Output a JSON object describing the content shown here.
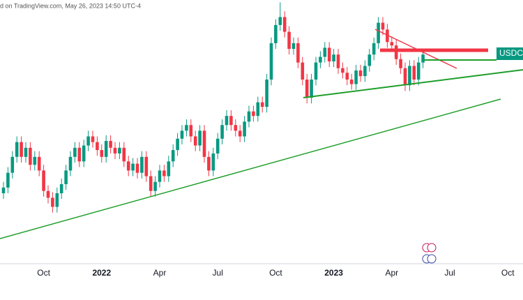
{
  "header": {
    "text": "d on TradingView.com, May 26, 2023 14:50 UTC-4"
  },
  "chart_data": {
    "type": "candlestick",
    "symbol_tag": "USDCAD",
    "up_color": "#089981",
    "down_color": "#f23645",
    "ylim": [
      1.168,
      1.4
    ],
    "categories": [
      null,
      null,
      null,
      null,
      null,
      null,
      null,
      null,
      null,
      "Oct",
      null,
      null,
      null,
      null,
      null,
      null,
      null,
      null,
      null,
      null,
      null,
      null,
      "2022",
      null,
      null,
      null,
      null,
      null,
      null,
      null,
      null,
      null,
      null,
      null,
      null,
      "Apr",
      null,
      null,
      null,
      null,
      null,
      null,
      null,
      null,
      null,
      null,
      null,
      null,
      "Jul",
      null,
      null,
      null,
      null,
      null,
      null,
      null,
      null,
      null,
      null,
      null,
      null,
      "Oct",
      null,
      null,
      null,
      null,
      null,
      null,
      null,
      null,
      null,
      null,
      null,
      null,
      "2023",
      null,
      null,
      null,
      null,
      null,
      null,
      null,
      null,
      null,
      null,
      null,
      null,
      "Apr",
      null,
      null,
      null,
      null,
      null,
      null,
      null,
      null,
      null,
      null,
      null,
      null,
      "Jul",
      null,
      null,
      null,
      null,
      null,
      null,
      null,
      null,
      null,
      null,
      null,
      null,
      "Oct"
    ],
    "open": [
      1.23,
      1.235,
      1.248,
      1.262,
      1.275,
      1.262,
      1.27,
      1.255,
      1.262,
      1.25,
      1.232,
      1.226,
      1.218,
      1.23,
      1.238,
      1.25,
      1.262,
      1.27,
      1.258,
      1.272,
      1.28,
      1.275,
      1.268,
      1.262,
      1.276,
      1.27,
      1.265,
      1.27,
      1.258,
      1.25,
      1.256,
      1.248,
      1.262,
      1.245,
      1.232,
      1.24,
      1.25,
      1.245,
      1.258,
      1.268,
      1.278,
      1.285,
      1.29,
      1.28,
      1.272,
      1.285,
      1.262,
      1.25,
      1.265,
      1.278,
      1.29,
      1.298,
      1.29,
      1.285,
      1.28,
      1.293,
      1.302,
      1.298,
      1.31,
      1.306,
      1.33,
      1.362,
      1.378,
      1.385,
      1.372,
      1.357,
      1.362,
      1.345,
      1.33,
      1.314,
      1.33,
      1.345,
      1.35,
      1.358,
      1.346,
      1.352,
      1.34,
      1.336,
      1.33,
      1.326,
      1.338,
      1.333,
      1.342,
      1.352,
      1.362,
      1.38,
      1.374,
      1.363,
      1.36,
      1.348,
      1.34,
      1.325,
      1.342,
      1.33,
      1.345,
      null,
      null,
      null,
      null,
      null,
      null,
      null,
      null,
      null,
      null,
      null,
      null,
      null,
      null,
      null,
      null,
      null,
      null,
      null
    ],
    "high": [
      1.24,
      1.253,
      1.267,
      1.28,
      1.28,
      1.275,
      1.275,
      1.267,
      1.267,
      1.255,
      1.237,
      1.231,
      1.235,
      1.243,
      1.255,
      1.267,
      1.275,
      1.275,
      1.277,
      1.285,
      1.285,
      1.28,
      1.273,
      1.281,
      1.281,
      1.275,
      1.275,
      1.275,
      1.263,
      1.261,
      1.261,
      1.267,
      1.267,
      1.25,
      1.245,
      1.255,
      1.255,
      1.263,
      1.273,
      1.283,
      1.29,
      1.295,
      1.295,
      1.285,
      1.29,
      1.29,
      1.267,
      1.27,
      1.283,
      1.295,
      1.303,
      1.303,
      1.295,
      1.29,
      1.298,
      1.307,
      1.307,
      1.315,
      1.315,
      1.335,
      1.367,
      1.383,
      1.398,
      1.39,
      1.377,
      1.367,
      1.367,
      1.35,
      1.335,
      1.335,
      1.35,
      1.355,
      1.363,
      1.363,
      1.357,
      1.357,
      1.345,
      1.341,
      1.335,
      1.343,
      1.343,
      1.347,
      1.357,
      1.367,
      1.385,
      1.385,
      1.379,
      1.368,
      1.365,
      1.353,
      1.345,
      1.347,
      1.347,
      1.35,
      1.357,
      null,
      null,
      null,
      null,
      null,
      null,
      null,
      null,
      null,
      null,
      null,
      null,
      null,
      null,
      null,
      null,
      null,
      null,
      null
    ],
    "low": [
      1.225,
      1.23,
      1.243,
      1.257,
      1.257,
      1.257,
      1.25,
      1.25,
      1.245,
      1.227,
      1.221,
      1.213,
      1.213,
      1.225,
      1.233,
      1.245,
      1.257,
      1.253,
      1.253,
      1.267,
      1.27,
      1.263,
      1.257,
      1.257,
      1.265,
      1.26,
      1.26,
      1.253,
      1.245,
      1.245,
      1.243,
      1.243,
      1.24,
      1.227,
      1.227,
      1.235,
      1.24,
      1.24,
      1.253,
      1.263,
      1.273,
      1.28,
      1.275,
      1.267,
      1.267,
      1.257,
      1.245,
      1.245,
      1.26,
      1.273,
      1.285,
      1.285,
      1.28,
      1.275,
      1.275,
      1.288,
      1.293,
      1.293,
      1.301,
      1.301,
      1.325,
      1.357,
      1.373,
      1.367,
      1.352,
      1.352,
      1.34,
      1.325,
      1.309,
      1.309,
      1.325,
      1.34,
      1.345,
      1.341,
      1.341,
      1.335,
      1.331,
      1.325,
      1.321,
      1.321,
      1.328,
      1.328,
      1.337,
      1.347,
      1.357,
      1.369,
      1.358,
      1.355,
      1.343,
      1.335,
      1.32,
      1.32,
      1.325,
      1.325,
      1.34,
      null,
      null,
      null,
      null,
      null,
      null,
      null,
      null,
      null,
      null,
      null,
      null,
      null,
      null,
      null,
      null,
      null,
      null,
      null
    ],
    "close": [
      1.235,
      1.248,
      1.262,
      1.275,
      1.262,
      1.27,
      1.255,
      1.262,
      1.25,
      1.232,
      1.226,
      1.218,
      1.23,
      1.238,
      1.25,
      1.262,
      1.27,
      1.258,
      1.272,
      1.28,
      1.275,
      1.268,
      1.262,
      1.276,
      1.27,
      1.265,
      1.27,
      1.258,
      1.25,
      1.256,
      1.248,
      1.262,
      1.245,
      1.232,
      1.24,
      1.25,
      1.245,
      1.258,
      1.268,
      1.278,
      1.285,
      1.29,
      1.28,
      1.272,
      1.285,
      1.262,
      1.25,
      1.265,
      1.278,
      1.29,
      1.298,
      1.29,
      1.285,
      1.28,
      1.293,
      1.302,
      1.298,
      1.31,
      1.306,
      1.33,
      1.362,
      1.378,
      1.385,
      1.372,
      1.357,
      1.362,
      1.345,
      1.33,
      1.314,
      1.33,
      1.345,
      1.35,
      1.358,
      1.346,
      1.352,
      1.34,
      1.336,
      1.33,
      1.326,
      1.338,
      1.333,
      1.342,
      1.352,
      1.362,
      1.38,
      1.374,
      1.363,
      1.36,
      1.348,
      1.34,
      1.325,
      1.342,
      1.33,
      1.345,
      1.352,
      null,
      null,
      null,
      null,
      null,
      null,
      null,
      null,
      null,
      null,
      null,
      null,
      null,
      null,
      null,
      null,
      null,
      null,
      null
    ]
  }
}
